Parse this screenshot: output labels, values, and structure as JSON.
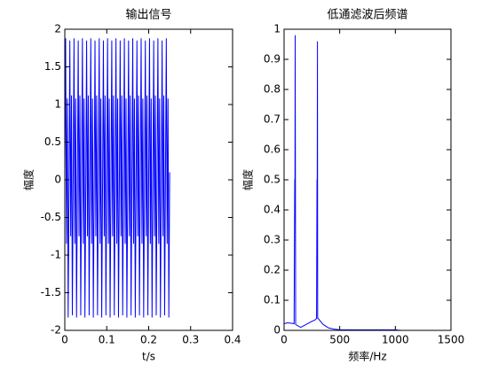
{
  "chart_data": [
    {
      "type": "line",
      "title": "输出信号",
      "x_label": "t/s",
      "y_label": "幅度",
      "xlim": [
        0,
        0.4
      ],
      "ylim": [
        -2,
        2
      ],
      "xticks": [
        0,
        0.1,
        0.2,
        0.3,
        0.4
      ],
      "yticks": [
        -2,
        -1.5,
        -1,
        -0.5,
        0,
        0.5,
        1,
        1.5,
        2
      ],
      "grid": false,
      "series": [
        {
          "color": "#0000ff",
          "x": [
            0,
            0.002,
            0.004,
            0.006,
            0.008,
            0.01,
            0.012,
            0.014,
            0.016,
            0.018,
            0.02,
            0.022,
            0.024,
            0.026,
            0.028,
            0.03,
            0.032,
            0.034,
            0.036,
            0.038,
            0.04,
            0.042,
            0.044,
            0.046,
            0.048,
            0.05,
            0.052,
            0.054,
            0.056,
            0.058,
            0.06,
            0.062,
            0.064,
            0.066,
            0.068,
            0.07,
            0.072,
            0.074,
            0.076,
            0.078,
            0.08,
            0.082,
            0.084,
            0.086,
            0.088,
            0.09,
            0.092,
            0.094,
            0.096,
            0.098,
            0.1,
            0.102,
            0.104,
            0.106,
            0.108,
            0.11,
            0.112,
            0.114,
            0.116,
            0.118,
            0.12,
            0.122,
            0.124,
            0.126,
            0.128,
            0.13,
            0.132,
            0.134,
            0.136,
            0.138,
            0.14,
            0.142,
            0.144,
            0.146,
            0.148,
            0.15,
            0.152,
            0.154,
            0.156,
            0.158,
            0.16,
            0.162,
            0.164,
            0.166,
            0.168,
            0.17,
            0.172,
            0.174,
            0.176,
            0.178,
            0.18,
            0.182,
            0.184,
            0.186,
            0.188,
            0.19,
            0.192,
            0.194,
            0.196,
            0.198,
            0.2,
            0.202,
            0.204,
            0.206,
            0.208,
            0.21,
            0.212,
            0.214,
            0.216,
            0.218,
            0.22,
            0.222,
            0.224,
            0.226,
            0.228,
            0.23,
            0.232,
            0.234,
            0.236,
            0.238,
            0.24,
            0.242,
            0.244,
            0.246,
            0.248,
            0.25
          ],
          "values": [
            0.05,
            1.88,
            -0.85,
            1.08,
            -1.83,
            -0.1,
            1.85,
            -0.75,
            1.12,
            -1.8,
            0.05,
            1.88,
            -0.85,
            1.08,
            -1.83,
            -0.1,
            1.85,
            -0.75,
            1.12,
            -1.8,
            0.05,
            1.88,
            -0.85,
            1.08,
            -1.83,
            -0.1,
            1.85,
            -0.75,
            1.12,
            -1.8,
            0.05,
            1.88,
            -0.85,
            1.08,
            -1.83,
            -0.1,
            1.85,
            -0.75,
            1.12,
            -1.8,
            0.05,
            1.88,
            -0.85,
            1.08,
            -1.83,
            -0.1,
            1.85,
            -0.75,
            1.12,
            -1.8,
            0.05,
            1.88,
            -0.85,
            1.08,
            -1.83,
            -0.1,
            1.85,
            -0.75,
            1.12,
            -1.8,
            0.05,
            1.88,
            -0.85,
            1.08,
            -1.83,
            -0.1,
            1.85,
            -0.75,
            1.12,
            -1.8,
            0.05,
            1.88,
            -0.85,
            1.08,
            -1.83,
            -0.1,
            1.85,
            -0.75,
            1.12,
            -1.8,
            0.05,
            1.88,
            -0.85,
            1.08,
            -1.83,
            -0.1,
            1.85,
            -0.75,
            1.12,
            -1.8,
            0.05,
            1.88,
            -0.85,
            1.08,
            -1.83,
            -0.1,
            1.85,
            -0.75,
            1.12,
            -1.8,
            0.05,
            1.88,
            -0.85,
            1.08,
            -1.83,
            -0.1,
            1.85,
            -0.75,
            1.12,
            -1.8,
            0.05,
            1.88,
            -0.85,
            1.08,
            -1.83,
            -0.1,
            1.85,
            -0.75,
            1.12,
            -1.8,
            0.05,
            1.88,
            -0.85,
            1.08,
            -1.83,
            0.1
          ]
        }
      ]
    },
    {
      "type": "line",
      "title": "低通滤波后频谱",
      "x_label": "频率/Hz",
      "y_label": "幅度",
      "xlim": [
        0,
        1500
      ],
      "ylim": [
        0,
        1
      ],
      "xticks": [
        0,
        500,
        1000,
        1500
      ],
      "yticks": [
        0,
        0.1,
        0.2,
        0.3,
        0.4,
        0.5,
        0.6,
        0.7,
        0.8,
        0.9,
        1
      ],
      "grid": false,
      "series": [
        {
          "color": "#0000ff",
          "x": [
            0,
            30,
            60,
            90,
            96,
            98,
            100,
            102,
            104,
            110,
            150,
            200,
            250,
            280,
            292,
            296,
            298,
            300,
            302,
            304,
            310,
            350,
            400,
            450,
            480,
            500,
            600,
            800,
            1000,
            1020,
            1050
          ],
          "values": [
            0.022,
            0.025,
            0.024,
            0.022,
            0.5,
            0.5,
            0.98,
            0.5,
            0.02,
            0.018,
            0.01,
            0.02,
            0.03,
            0.035,
            0.04,
            0.5,
            0.5,
            0.96,
            0.04,
            0.04,
            0.038,
            0.02,
            0.008,
            0.004,
            0.003,
            0.002,
            0.002,
            0.002,
            0.002,
            0.001,
            0
          ]
        }
      ]
    }
  ]
}
